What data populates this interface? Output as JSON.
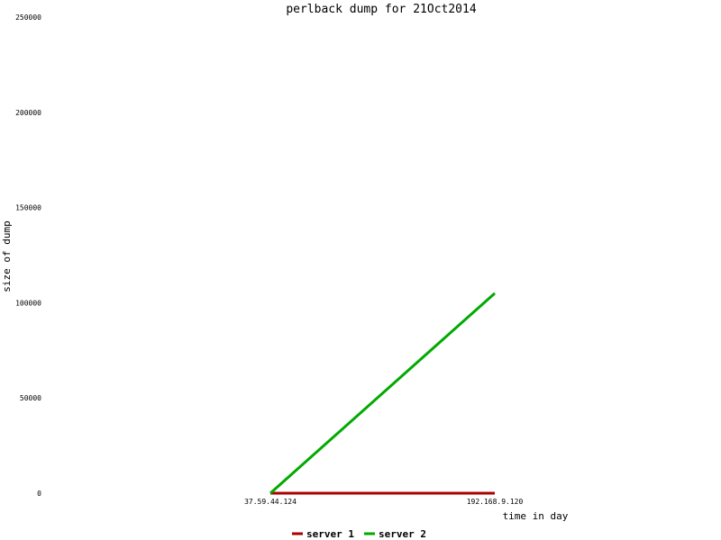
{
  "chart_data": {
    "type": "line",
    "title": "perlback dump for 21Oct2014",
    "xlabel": "time in day",
    "ylabel": "size of dump",
    "x": [
      "37.59.44.124",
      "192.168.9.120"
    ],
    "ylim": [
      0,
      250000
    ],
    "yticks": [
      "0",
      "50000",
      "100000",
      "150000",
      "200000",
      "250000"
    ],
    "grid": false,
    "legend_position": "bottom-center",
    "series": [
      {
        "name": "server 1",
        "color": "#aa0000",
        "values": [
          0,
          0
        ]
      },
      {
        "name": "server 2",
        "color": "#00aa00",
        "values": [
          0,
          105000
        ]
      }
    ]
  }
}
